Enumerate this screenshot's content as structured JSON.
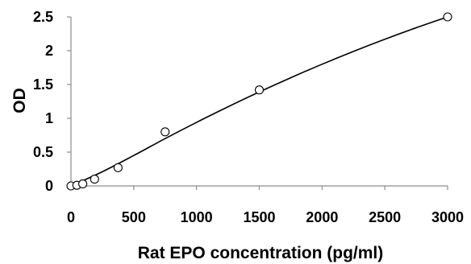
{
  "chart_data": {
    "type": "scatter",
    "title": "",
    "xlabel": "Rat EPO concentration (pg/ml)",
    "ylabel": "OD",
    "xlim": [
      0,
      3000
    ],
    "ylim": [
      0,
      2.5
    ],
    "x_ticks": [
      0,
      500,
      1000,
      1500,
      2000,
      2500,
      3000
    ],
    "y_ticks": [
      0,
      0.5,
      1,
      1.5,
      2,
      2.5
    ],
    "x_tick_labels": [
      "0",
      "500",
      "1000",
      "1500",
      "2000",
      "2500",
      "3000"
    ],
    "y_tick_labels": [
      "0",
      "0.5",
      "1",
      "1.5",
      "2",
      "2.5"
    ],
    "grid": false,
    "legend": "none",
    "series": [
      {
        "marker": "open-circle",
        "x": [
          0,
          47,
          94,
          188,
          375,
          750,
          1500,
          3000
        ],
        "y": [
          0.0,
          0.01,
          0.03,
          0.1,
          0.27,
          0.8,
          1.42,
          2.5
        ]
      }
    ],
    "fit_curve": {
      "kind": "smooth-fit",
      "x": [
        0,
        250,
        500,
        750,
        1000,
        1250,
        1500,
        1750,
        2000,
        2250,
        2500,
        2750,
        3000
      ],
      "y": [
        0.0,
        0.21,
        0.45,
        0.7,
        0.94,
        1.17,
        1.39,
        1.6,
        1.8,
        1.99,
        2.17,
        2.34,
        2.5
      ]
    }
  }
}
